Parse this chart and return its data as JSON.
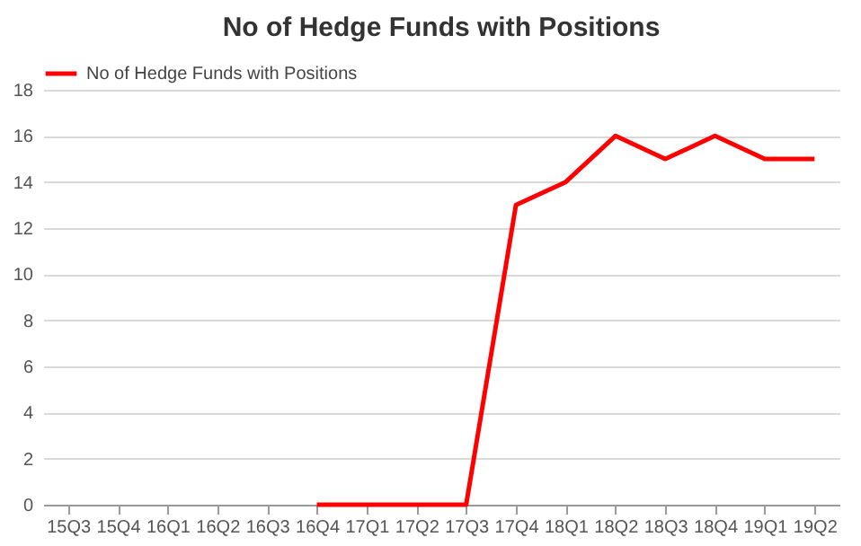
{
  "chart_data": {
    "type": "line",
    "title": "No of Hedge Funds with Positions",
    "categories": [
      "15Q3",
      "15Q4",
      "16Q1",
      "16Q2",
      "16Q3",
      "16Q4",
      "17Q1",
      "17Q2",
      "17Q3",
      "17Q4",
      "18Q1",
      "18Q2",
      "18Q3",
      "18Q4",
      "19Q1",
      "19Q2"
    ],
    "series": [
      {
        "name": "No of Hedge Funds with Positions",
        "color": "#ff0000",
        "values": [
          null,
          null,
          null,
          null,
          null,
          0,
          0,
          0,
          0,
          13,
          14,
          16,
          15,
          16,
          15,
          15
        ]
      }
    ],
    "ylim": [
      0,
      18
    ],
    "yticks": [
      0,
      2,
      4,
      6,
      8,
      10,
      12,
      14,
      16,
      18
    ],
    "grid": "y",
    "legend": "top",
    "marker": "none",
    "line_style": "solid"
  }
}
